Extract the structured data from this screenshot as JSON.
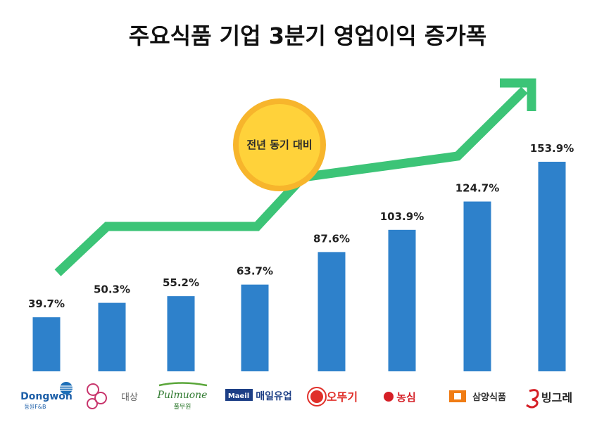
{
  "title": "주요식품 기업 3분기 영업이익 증가폭",
  "badge": "전년 동기 대비",
  "colors": {
    "bar": "#2e81cb",
    "arrow": "#3cc477",
    "badge_fill": "#ffd23a",
    "badge_ring": "#f7b52c"
  },
  "chart_data": {
    "type": "bar",
    "categories": [
      "동원F&B",
      "대상",
      "풀무원",
      "매일유업",
      "오뚜기",
      "농심",
      "삼양식품",
      "빙그레"
    ],
    "values": [
      39.7,
      50.3,
      55.2,
      63.7,
      87.6,
      103.9,
      124.7,
      153.9
    ],
    "value_labels": [
      "39.7%",
      "50.3%",
      "55.2%",
      "63.7%",
      "87.6%",
      "103.9%",
      "124.7%",
      "153.9%"
    ],
    "unit": "%",
    "ylim": [
      0,
      153.9
    ],
    "grid": false,
    "legend": "none"
  },
  "logos": [
    {
      "name": "dongwon",
      "text": "Dongwon",
      "sub": "동원F&B"
    },
    {
      "name": "daesang",
      "text": "대상",
      "mark": "daesang"
    },
    {
      "name": "pulmuone",
      "text": "Pulmuone",
      "sub": "풀무원"
    },
    {
      "name": "maeil",
      "text": "매일유업",
      "mark": "Maeil"
    },
    {
      "name": "ottogi",
      "text": "오뚜기",
      "mark": "오뚜기"
    },
    {
      "name": "nongshim",
      "text": "농심"
    },
    {
      "name": "samyang",
      "text": "삼양식품"
    },
    {
      "name": "binggrae",
      "text": "빙그레"
    }
  ]
}
